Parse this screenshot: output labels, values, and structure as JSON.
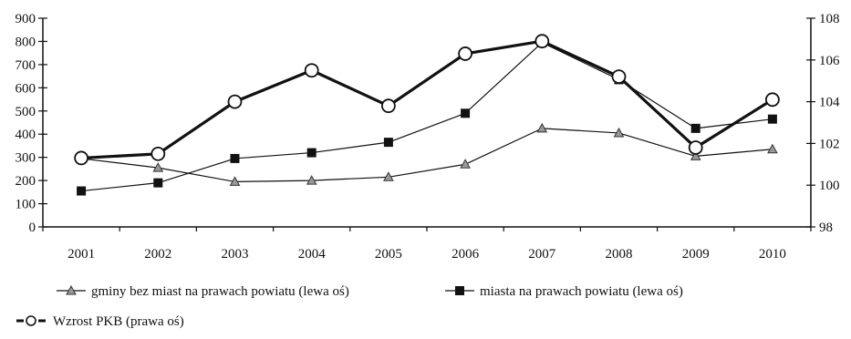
{
  "chart_data": {
    "type": "line",
    "categories": [
      "2001",
      "2002",
      "2003",
      "2004",
      "2005",
      "2006",
      "2007",
      "2008",
      "2009",
      "2010"
    ],
    "y_left": {
      "ylim": [
        0,
        900
      ],
      "ticks": [
        "0",
        "100",
        "200",
        "300",
        "400",
        "500",
        "600",
        "700",
        "800",
        "900"
      ]
    },
    "y_right": {
      "ylim": [
        98,
        108
      ],
      "ticks": [
        "98",
        "100",
        "102",
        "104",
        "106",
        "108"
      ]
    },
    "grid": false,
    "legend_position": "bottom",
    "series": [
      {
        "name": "gminy bez miast na prawach powiatu (lewa oś)",
        "axis": "left",
        "marker": "triangle",
        "style": "thin-solid",
        "values": [
          295,
          255,
          195,
          200,
          215,
          270,
          425,
          405,
          305,
          335
        ]
      },
      {
        "name": "miasta na prawach powiatu (lewa oś)",
        "axis": "left",
        "marker": "square",
        "style": "thin-solid",
        "values": [
          155,
          190,
          295,
          320,
          365,
          490,
          795,
          635,
          425,
          465
        ]
      },
      {
        "name": "Wzrost PKB (prawa oś)",
        "axis": "right",
        "marker": "circle-open",
        "style": "thick-solid",
        "values": [
          101.3,
          101.5,
          104.0,
          105.5,
          103.8,
          106.3,
          106.9,
          105.2,
          101.8,
          104.1
        ]
      }
    ]
  }
}
